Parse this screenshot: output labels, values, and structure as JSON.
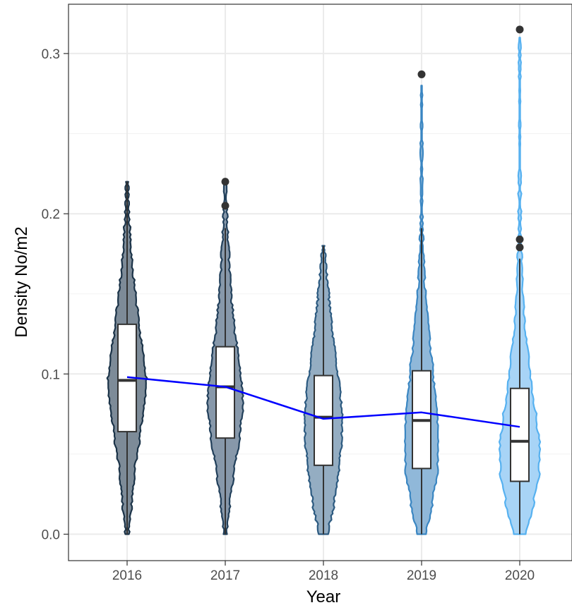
{
  "chart_data": {
    "type": "violin",
    "xlabel": "Year",
    "ylabel": "Density No/m2",
    "categories": [
      "2016",
      "2017",
      "2018",
      "2019",
      "2020"
    ],
    "ylim": [
      -0.012,
      0.32
    ],
    "yticks": [
      0.0,
      0.1,
      0.2,
      0.3
    ],
    "ytick_labels": [
      "0.0",
      "0.1",
      "0.2",
      "0.3"
    ],
    "grid": true,
    "legend": "none",
    "trend_line_color": "#0000ff",
    "violins": [
      {
        "year": "2016",
        "fill": "#7d8b98",
        "stroke": "#1b3348",
        "profile": [
          [
            0.0,
            0.06
          ],
          [
            0.02,
            0.15
          ],
          [
            0.04,
            0.27
          ],
          [
            0.06,
            0.41
          ],
          [
            0.08,
            0.58
          ],
          [
            0.095,
            0.66
          ],
          [
            0.11,
            0.57
          ],
          [
            0.13,
            0.42
          ],
          [
            0.15,
            0.28
          ],
          [
            0.17,
            0.16
          ],
          [
            0.19,
            0.09
          ],
          [
            0.205,
            0.05
          ],
          [
            0.22,
            0.04
          ]
        ],
        "box": {
          "q1": 0.064,
          "median": 0.096,
          "q3": 0.131,
          "whisker_low": 0.0,
          "whisker_high": 0.22
        },
        "outliers": [],
        "mean": 0.098
      },
      {
        "year": "2017",
        "fill": "#8798aa",
        "stroke": "#22405b",
        "profile": [
          [
            0.0,
            0.06
          ],
          [
            0.02,
            0.16
          ],
          [
            0.04,
            0.3
          ],
          [
            0.06,
            0.48
          ],
          [
            0.08,
            0.6
          ],
          [
            0.095,
            0.55
          ],
          [
            0.11,
            0.44
          ],
          [
            0.13,
            0.3
          ],
          [
            0.15,
            0.2
          ],
          [
            0.17,
            0.13
          ],
          [
            0.19,
            0.08
          ],
          [
            0.205,
            0.05
          ],
          [
            0.22,
            0.03
          ]
        ],
        "box": {
          "q1": 0.06,
          "median": 0.092,
          "q3": 0.117,
          "whisker_low": 0.0,
          "whisker_high": 0.191
        },
        "outliers": [
          0.205,
          0.22
        ],
        "mean": 0.092
      },
      {
        "year": "2018",
        "fill": "#94adc2",
        "stroke": "#2c5a80",
        "profile": [
          [
            0.0,
            0.16
          ],
          [
            0.02,
            0.36
          ],
          [
            0.04,
            0.52
          ],
          [
            0.06,
            0.62
          ],
          [
            0.075,
            0.63
          ],
          [
            0.09,
            0.56
          ],
          [
            0.11,
            0.42
          ],
          [
            0.13,
            0.29
          ],
          [
            0.15,
            0.18
          ],
          [
            0.165,
            0.1
          ],
          [
            0.18,
            0.04
          ]
        ],
        "box": {
          "q1": 0.043,
          "median": 0.073,
          "q3": 0.099,
          "whisker_low": 0.0,
          "whisker_high": 0.18
        },
        "outliers": [],
        "mean": 0.072
      },
      {
        "year": "2019",
        "fill": "#90b8d9",
        "stroke": "#3a86c2",
        "profile": [
          [
            0.0,
            0.15
          ],
          [
            0.02,
            0.37
          ],
          [
            0.04,
            0.53
          ],
          [
            0.06,
            0.57
          ],
          [
            0.08,
            0.5
          ],
          [
            0.1,
            0.39
          ],
          [
            0.12,
            0.28
          ],
          [
            0.14,
            0.18
          ],
          [
            0.16,
            0.1
          ],
          [
            0.18,
            0.05
          ],
          [
            0.2,
            0.025
          ],
          [
            0.22,
            0.025
          ],
          [
            0.24,
            0.02
          ],
          [
            0.26,
            0.02
          ],
          [
            0.28,
            0.015
          ]
        ],
        "box": {
          "q1": 0.041,
          "median": 0.071,
          "q3": 0.102,
          "whisker_low": 0.0,
          "whisker_high": 0.191
        },
        "outliers": [
          0.287
        ],
        "mean": 0.076
      },
      {
        "year": "2020",
        "fill": "#a8d4f6",
        "stroke": "#56b1f0",
        "profile": [
          [
            0.0,
            0.2
          ],
          [
            0.02,
            0.48
          ],
          [
            0.04,
            0.66
          ],
          [
            0.055,
            0.68
          ],
          [
            0.07,
            0.58
          ],
          [
            0.09,
            0.42
          ],
          [
            0.11,
            0.29
          ],
          [
            0.13,
            0.17
          ],
          [
            0.15,
            0.1
          ],
          [
            0.17,
            0.06
          ],
          [
            0.19,
            0.04
          ],
          [
            0.21,
            0.03
          ],
          [
            0.23,
            0.015
          ],
          [
            0.26,
            0.015
          ],
          [
            0.29,
            0.015
          ],
          [
            0.31,
            0.015
          ]
        ],
        "box": {
          "q1": 0.033,
          "median": 0.058,
          "q3": 0.091,
          "whisker_low": 0.0,
          "whisker_high": 0.172
        },
        "outliers": [
          0.179,
          0.184,
          0.315
        ],
        "mean": 0.067
      }
    ]
  }
}
